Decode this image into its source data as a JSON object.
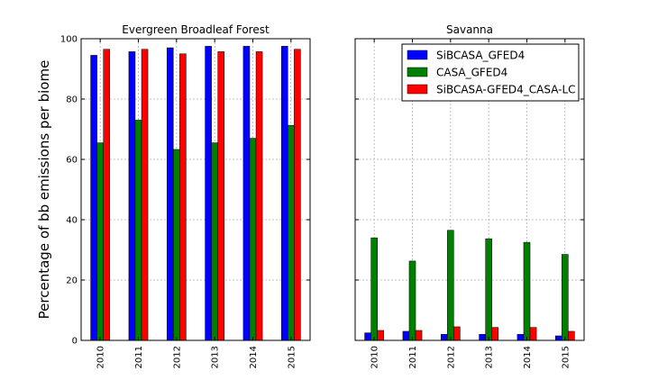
{
  "figure": {
    "ylabel": "Percentage of bb emissions per biome"
  },
  "chart_data": [
    {
      "type": "bar",
      "title": "Evergreen Broadleaf Forest",
      "categories": [
        "2010",
        "2011",
        "2012",
        "2013",
        "2014",
        "2015"
      ],
      "ylim": [
        0,
        100
      ],
      "yticks": [
        0,
        20,
        40,
        60,
        80,
        100
      ],
      "grid": true,
      "series": [
        {
          "name": "SiBCASA_GFED4",
          "color": "#0000ff",
          "values": [
            94.5,
            95.7,
            97.0,
            97.5,
            97.5,
            97.5
          ]
        },
        {
          "name": "CASA_GFED4",
          "color": "#007f00",
          "values": [
            65.5,
            73.0,
            63.3,
            65.5,
            67.0,
            71.3
          ]
        },
        {
          "name": "SiBCASA-GFED4_CASA-LC",
          "color": "#ff0000",
          "values": [
            96.5,
            96.5,
            95.0,
            95.7,
            95.7,
            96.5
          ]
        }
      ]
    },
    {
      "type": "bar",
      "title": "Savanna",
      "categories": [
        "2010",
        "2011",
        "2012",
        "2013",
        "2014",
        "2015"
      ],
      "ylim": [
        0,
        100
      ],
      "yticks": [
        0,
        20,
        40,
        60,
        80,
        100
      ],
      "grid": true,
      "legend_position": "top-right",
      "series": [
        {
          "name": "SiBCASA_GFED4",
          "color": "#0000ff",
          "values": [
            2.5,
            3.0,
            2.0,
            2.0,
            2.0,
            1.5
          ]
        },
        {
          "name": "CASA_GFED4",
          "color": "#007f00",
          "values": [
            34.0,
            26.3,
            36.5,
            33.7,
            32.5,
            28.5
          ]
        },
        {
          "name": "SiBCASA-GFED4_CASA-LC",
          "color": "#ff0000",
          "values": [
            3.3,
            3.3,
            4.5,
            4.3,
            4.3,
            3.0
          ]
        }
      ]
    }
  ]
}
